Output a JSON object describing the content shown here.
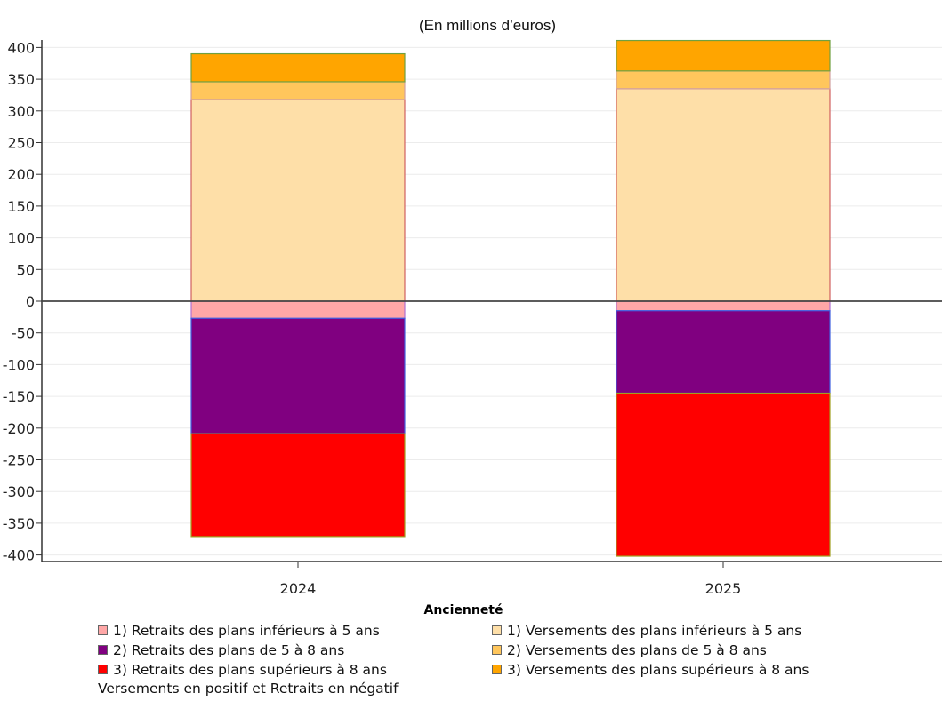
{
  "chart_data": {
    "type": "bar",
    "stacked": true,
    "subtitle": "(En millions d’euros)",
    "xlabel": "Ancienneté",
    "categories": [
      "2024",
      "2025"
    ],
    "ylim": [
      -400,
      400
    ],
    "yticks": [
      400,
      350,
      300,
      250,
      200,
      150,
      100,
      50,
      0,
      -50,
      -100,
      -150,
      -200,
      -250,
      -300,
      -350,
      -400
    ],
    "grid": true,
    "legend_position": "bottom",
    "series": [
      {
        "name": "1) Retraits des plans inférieurs à 5 ans",
        "values": [
          -27,
          -15
        ],
        "color": "#FFA7A7",
        "stroke": "#B070D0"
      },
      {
        "name": "1) Versements des plans inférieurs à 5 ans",
        "values": [
          318,
          335
        ],
        "color": "#FEDFA8",
        "stroke": "#D06060"
      },
      {
        "name": "2) Retraits des plans de 5 à 8 ans",
        "values": [
          -182,
          -130
        ],
        "color": "#800080",
        "stroke": "#4060E0"
      },
      {
        "name": "2) Versements des plans de 5 à 8 ans",
        "values": [
          28,
          28
        ],
        "color": "#FFC65C",
        "stroke": "#D0A0A0"
      },
      {
        "name": "3) Retraits des plans supérieurs à 8 ans",
        "values": [
          -162,
          -257
        ],
        "color": "#FF0000",
        "stroke": "#A0A020"
      },
      {
        "name": "3) Versements des plans supérieurs à 8 ans",
        "values": [
          44,
          48
        ],
        "color": "#FFA500",
        "stroke": "#70A040"
      }
    ],
    "footnote": "Versements en positif et Retraits en négatif"
  }
}
